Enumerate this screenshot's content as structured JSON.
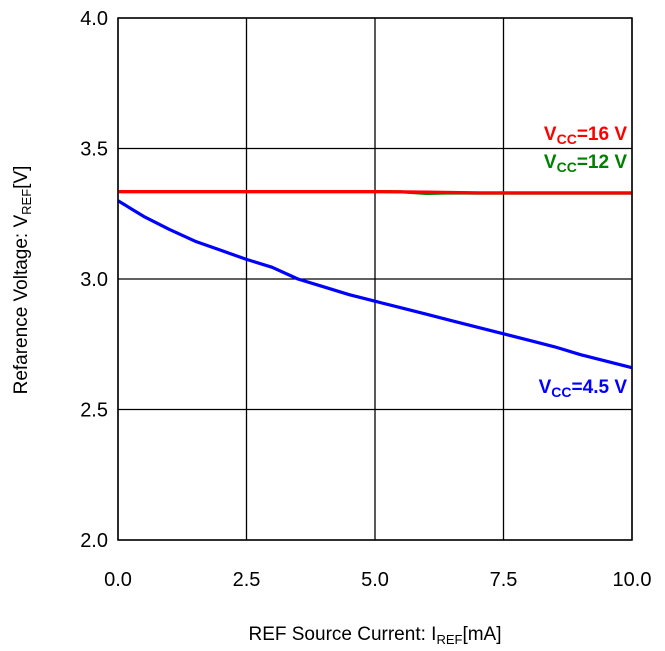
{
  "chart_data": {
    "type": "line",
    "title": "",
    "xlabel": {
      "main": "REF Source Current: I",
      "sub": "REF",
      "unit": "[mA]"
    },
    "ylabel": {
      "main": "Refarence Voltage: V",
      "sub": "REF",
      "unit": "[V]"
    },
    "xlim": [
      0,
      10
    ],
    "ylim": [
      2,
      4
    ],
    "x_ticks": [
      "0.0",
      "2.5",
      "5.0",
      "7.5",
      "10.0"
    ],
    "y_ticks": [
      "2.0",
      "2.5",
      "3.0",
      "3.5",
      "4.0"
    ],
    "grid": true,
    "series": [
      {
        "name": "VCC=16 V",
        "label": {
          "main": "V",
          "sub": "CC",
          "rest": "=16 V"
        },
        "color": "#ff0000",
        "x": [
          0,
          1,
          2,
          3,
          4,
          5,
          6,
          7,
          8,
          9,
          10
        ],
        "y": [
          3.335,
          3.335,
          3.335,
          3.335,
          3.335,
          3.335,
          3.333,
          3.33,
          3.33,
          3.33,
          3.33
        ]
      },
      {
        "name": "VCC=12 V",
        "label": {
          "main": "V",
          "sub": "CC",
          "rest": "=12 V"
        },
        "color": "#008000",
        "x": [
          0,
          1,
          2,
          3,
          4,
          5,
          5.5,
          6,
          6.5,
          7,
          8,
          9,
          10
        ],
        "y": [
          3.335,
          3.335,
          3.335,
          3.335,
          3.335,
          3.335,
          3.334,
          3.328,
          3.33,
          3.329,
          3.329,
          3.329,
          3.329
        ]
      },
      {
        "name": "VCC=4.5 V",
        "label": {
          "main": "V",
          "sub": "CC",
          "rest": "=4.5 V"
        },
        "color": "#0000ff",
        "x": [
          0,
          0.5,
          1,
          1.5,
          2,
          2.5,
          3,
          3.5,
          4,
          4.5,
          5,
          5.5,
          6,
          6.5,
          7,
          7.5,
          8,
          8.5,
          9,
          9.5,
          10
        ],
        "y": [
          3.3,
          3.24,
          3.19,
          3.145,
          3.11,
          3.075,
          3.045,
          3.0,
          2.97,
          2.94,
          2.915,
          2.89,
          2.865,
          2.84,
          2.815,
          2.79,
          2.765,
          2.74,
          2.71,
          2.685,
          2.66
        ]
      }
    ]
  }
}
